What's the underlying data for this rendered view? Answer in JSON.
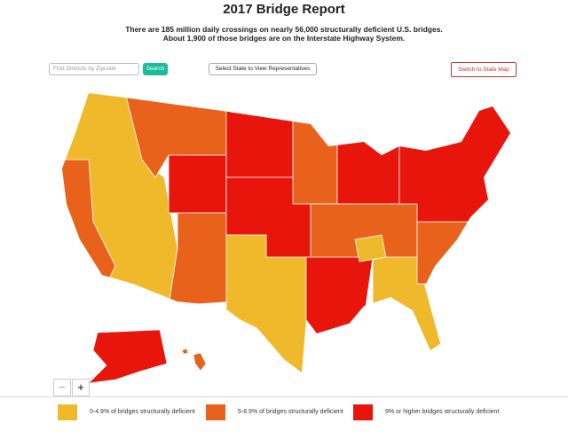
{
  "header": {
    "title": "2017 Bridge Report",
    "subtitle": [
      "There are 185 million daily crossings on nearly 56,000 structurally deficient U.S. bridges.",
      "About 1,900 of those bridges are on the Interstate Highway System."
    ]
  },
  "controls": {
    "zipcode_placeholder": "Find Districts by Zipcode",
    "search_button": "Search",
    "state_select": "Select State to View Representatives",
    "switch_button": "Switch to State Map",
    "zoom_out": "−",
    "zoom_in": "+"
  },
  "legend": [
    {
      "label": "0-4.9% of bridges structurally deficient",
      "color": "#f0b92b"
    },
    {
      "label": "5-8.9% of bridges structurally deficient",
      "color": "#e8621c"
    },
    {
      "label": "9% or higher bridges structurally deficient",
      "color": "#e8150d"
    }
  ]
}
